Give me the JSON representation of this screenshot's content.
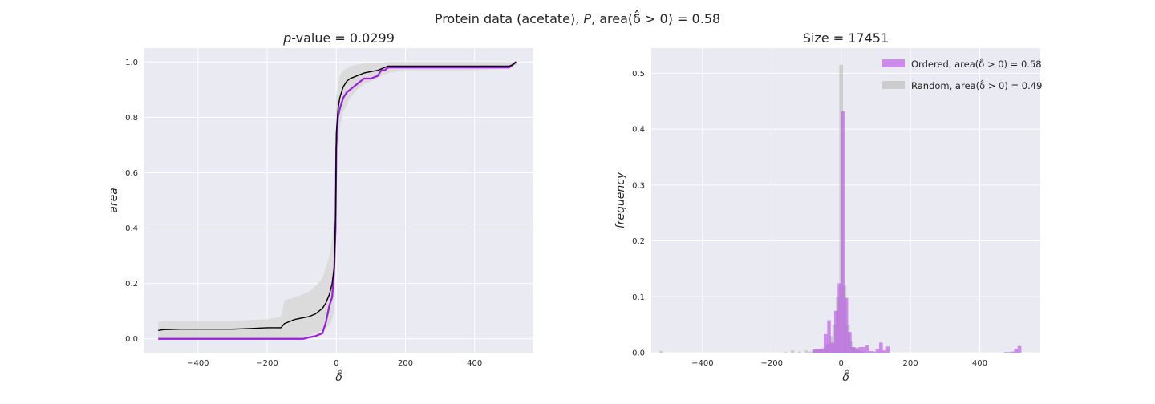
{
  "figure": {
    "suptitle_parts": [
      "Protein data (acetate), ",
      "P",
      ", area(",
      "δ̂",
      " > 0) = 0.58"
    ]
  },
  "chart_data": [
    {
      "type": "line",
      "title_parts": [
        "p",
        "-value = 0.0299"
      ],
      "xlabel": "δ̂",
      "ylabel": "area",
      "xlim": [
        -555,
        570
      ],
      "ylim": [
        -0.05,
        1.05
      ],
      "xticks": [
        -400,
        -200,
        0,
        200,
        400
      ],
      "xtick_labels": [
        "−400",
        "−200",
        "0",
        "200",
        "400"
      ],
      "yticks": [
        0.0,
        0.2,
        0.4,
        0.6,
        0.8,
        1.0
      ],
      "ytick_labels": [
        "0.0",
        "0.2",
        "0.4",
        "0.6",
        "0.8",
        "1.0"
      ],
      "grid": true,
      "colors": {
        "background": "#eaeaf2",
        "grid": "#ffffff",
        "ordered": "#9b1ee0",
        "random": "#000000",
        "band": "#d8d8d8"
      },
      "series": [
        {
          "style": "ordered",
          "x": [
            -515,
            -95,
            -80,
            -60,
            -40,
            -30,
            -20,
            -12,
            -6,
            -2,
            0,
            5,
            10,
            20,
            30,
            40,
            60,
            80,
            100,
            120,
            130,
            140,
            150,
            160,
            200,
            300,
            400,
            500,
            510,
            520
          ],
          "y": [
            0.0,
            0.0,
            0.005,
            0.01,
            0.02,
            0.06,
            0.12,
            0.15,
            0.25,
            0.4,
            0.69,
            0.8,
            0.83,
            0.87,
            0.89,
            0.9,
            0.92,
            0.94,
            0.94,
            0.95,
            0.97,
            0.97,
            0.98,
            0.98,
            0.98,
            0.98,
            0.98,
            0.98,
            0.99,
            1.0
          ]
        },
        {
          "style": "random",
          "x": [
            -515,
            -500,
            -450,
            -400,
            -350,
            -300,
            -250,
            -200,
            -160,
            -150,
            -140,
            -120,
            -100,
            -80,
            -60,
            -40,
            -30,
            -20,
            -12,
            -6,
            -2,
            0,
            5,
            10,
            20,
            30,
            40,
            60,
            80,
            100,
            120,
            130,
            140,
            150,
            160,
            200,
            300,
            400,
            500,
            510,
            520
          ],
          "y": [
            0.03,
            0.033,
            0.035,
            0.035,
            0.035,
            0.035,
            0.037,
            0.04,
            0.04,
            0.055,
            0.06,
            0.07,
            0.075,
            0.08,
            0.09,
            0.11,
            0.13,
            0.16,
            0.2,
            0.26,
            0.45,
            0.74,
            0.83,
            0.87,
            0.91,
            0.93,
            0.94,
            0.95,
            0.96,
            0.965,
            0.97,
            0.975,
            0.98,
            0.985,
            0.985,
            0.985,
            0.985,
            0.985,
            0.985,
            0.99,
            1.0
          ]
        }
      ],
      "band": {
        "x": [
          -515,
          -500,
          -400,
          -300,
          -200,
          -160,
          -150,
          -120,
          -100,
          -80,
          -60,
          -40,
          -30,
          -20,
          -12,
          -6,
          -2,
          0,
          10,
          20,
          40,
          60,
          80,
          100,
          150,
          200,
          300,
          400,
          500,
          520
        ],
        "lower": [
          0.0,
          0.0,
          0.0,
          0.0,
          0.0,
          0.0,
          0.0,
          0.0,
          0.005,
          0.01,
          0.02,
          0.03,
          0.04,
          0.05,
          0.07,
          0.1,
          0.25,
          0.55,
          0.76,
          0.82,
          0.87,
          0.9,
          0.92,
          0.93,
          0.96,
          0.97,
          0.97,
          0.97,
          0.975,
          0.99
        ],
        "upper": [
          0.06,
          0.065,
          0.065,
          0.065,
          0.07,
          0.08,
          0.14,
          0.15,
          0.16,
          0.17,
          0.19,
          0.22,
          0.26,
          0.3,
          0.36,
          0.45,
          0.7,
          0.88,
          0.95,
          0.97,
          0.985,
          0.99,
          0.995,
          0.995,
          1.0,
          1.0,
          1.0,
          1.0,
          1.0,
          1.0
        ]
      }
    },
    {
      "type": "bar",
      "title": "Size = 17451",
      "xlabel": "δ̂",
      "ylabel": "frequency",
      "xlim": [
        -548,
        575
      ],
      "ylim": [
        0,
        0.545
      ],
      "xticks": [
        -400,
        -200,
        0,
        200,
        400
      ],
      "xtick_labels": [
        "−400",
        "−200",
        "0",
        "200",
        "400"
      ],
      "yticks": [
        0.0,
        0.1,
        0.2,
        0.3,
        0.4,
        0.5
      ],
      "ytick_labels": [
        "0.0",
        "0.1",
        "0.2",
        "0.3",
        "0.4",
        "0.5"
      ],
      "grid": true,
      "bin_width": 10.5,
      "legend": {
        "placement": "top-right",
        "entries": [
          {
            "style": "ordered",
            "parts": [
              "Ordered, area(",
              "δ̂",
              " > 0) = 0.58"
            ]
          },
          {
            "style": "random",
            "parts": [
              "Random, area(",
              "δ̂",
              " > 0) = 0.49"
            ]
          }
        ]
      },
      "colors": {
        "background": "#eaeaf2",
        "grid": "#ffffff",
        "ordered": "#b84be6",
        "random": "#b3b3b3"
      },
      "series": [
        {
          "style": "random",
          "x": [
            -520,
            -160,
            -140,
            -120,
            -100,
            -90,
            -80,
            -70,
            -60,
            -50,
            -40,
            -30,
            -20,
            -10,
            0,
            10,
            20,
            30,
            40,
            50,
            60
          ],
          "y": [
            0.003,
            0.001,
            0.004,
            0.002,
            0.004,
            0.002,
            0.005,
            0.006,
            0.007,
            0.009,
            0.015,
            0.03,
            0.05,
            0.1,
            0.515,
            0.12,
            0.05,
            0.02,
            0.01,
            0.004,
            0.002
          ]
        },
        {
          "style": "ordered",
          "x": [
            -75,
            -65,
            -55,
            -45,
            -35,
            -25,
            -15,
            -5,
            5,
            15,
            25,
            35,
            45,
            55,
            65,
            75,
            85,
            95,
            105,
            115,
            125,
            135,
            475,
            485,
            495,
            505,
            515
          ],
          "y": [
            0.006,
            0.007,
            0.006,
            0.033,
            0.058,
            0.018,
            0.075,
            0.124,
            0.432,
            0.098,
            0.037,
            0.01,
            0.008,
            0.01,
            0.01,
            0.013,
            0.003,
            0.002,
            0.006,
            0.018,
            0.004,
            0.011,
            0.001,
            0.001,
            0.002,
            0.007,
            0.012
          ]
        }
      ]
    }
  ]
}
